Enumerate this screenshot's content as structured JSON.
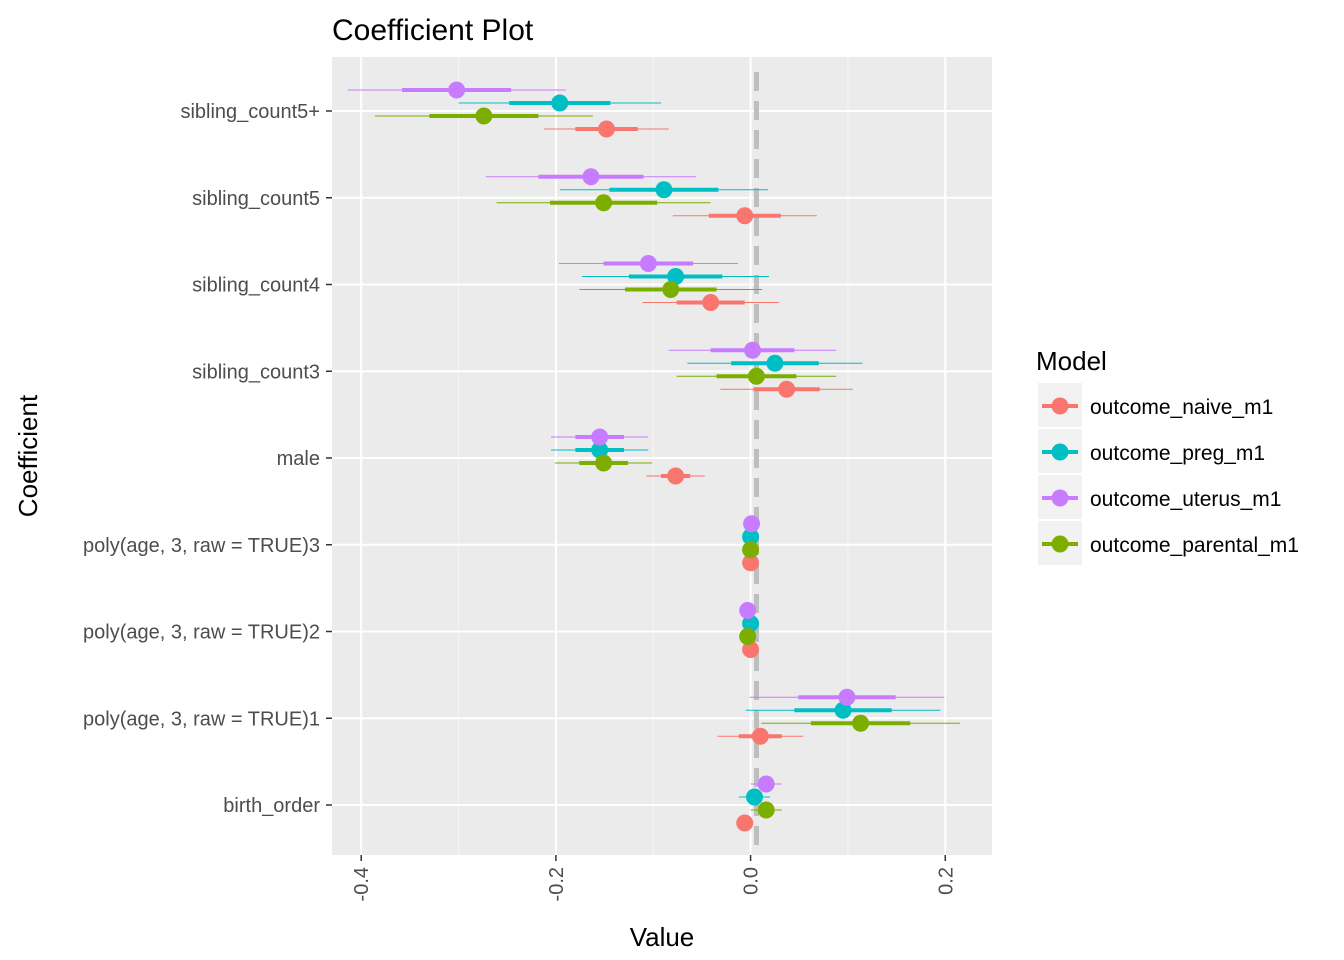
{
  "chart_data": {
    "type": "coefficient-plot",
    "title": "Coefficient Plot",
    "xlabel": "Value",
    "ylabel": "Coefficient",
    "xlim": [
      -0.43,
      0.248
    ],
    "x_ticks": [
      -0.4,
      -0.2,
      0.0,
      0.2
    ],
    "x_tick_labels": [
      "-0.4",
      "-0.2",
      "0.0",
      "0.2"
    ],
    "reference_line": 0,
    "grid": true,
    "legend_position": "right",
    "legend_title": "Model",
    "coefficients": [
      "birth_order",
      "poly(age, 3, raw = TRUE)1",
      "poly(age, 3, raw = TRUE)2",
      "poly(age, 3, raw = TRUE)3",
      "male",
      "sibling_count3",
      "sibling_count4",
      "sibling_count5",
      "sibling_count5+"
    ],
    "series": [
      {
        "name": "outcome_naive_m1",
        "color": "#F8766D",
        "estimates": [
          -0.006,
          0.01,
          0.0,
          0.0,
          -0.077,
          0.037,
          -0.041,
          -0.006,
          -0.148
        ],
        "inner_low": [
          -0.01,
          -0.012,
          0.0,
          0.0,
          -0.092,
          0.003,
          -0.076,
          -0.043,
          -0.18
        ],
        "inner_high": [
          -0.002,
          0.032,
          0.0,
          0.0,
          -0.062,
          0.071,
          -0.006,
          0.031,
          -0.116
        ],
        "outer_low": [
          -0.014,
          -0.034,
          0.0,
          0.0,
          -0.107,
          -0.031,
          -0.111,
          -0.08,
          -0.212
        ],
        "outer_high": [
          0.002,
          0.054,
          0.0,
          0.0,
          -0.047,
          0.105,
          0.029,
          0.068,
          -0.084
        ]
      },
      {
        "name": "outcome_preg_m1",
        "color": "#00BFC4",
        "estimates": [
          0.004,
          0.095,
          0.0,
          0.0,
          -0.155,
          0.025,
          -0.077,
          -0.089,
          -0.196
        ],
        "inner_low": [
          -0.004,
          0.045,
          0.0,
          0.0,
          -0.18,
          -0.02,
          -0.125,
          -0.145,
          -0.248
        ],
        "inner_high": [
          0.012,
          0.145,
          0.0,
          0.0,
          -0.13,
          0.07,
          -0.029,
          -0.033,
          -0.144
        ],
        "outer_low": [
          -0.012,
          -0.005,
          0.0,
          0.0,
          -0.205,
          -0.065,
          -0.173,
          -0.196,
          -0.3
        ],
        "outer_high": [
          0.02,
          0.195,
          0.0,
          0.0,
          -0.105,
          0.115,
          0.019,
          0.018,
          -0.092
        ]
      },
      {
        "name": "outcome_uterus_m1",
        "color": "#C77CFF",
        "estimates": [
          0.016,
          0.099,
          -0.003,
          0.001,
          -0.155,
          0.002,
          -0.105,
          -0.164,
          -0.302
        ],
        "inner_low": [
          0.008,
          0.049,
          -0.004,
          0.0,
          -0.18,
          -0.041,
          -0.151,
          -0.218,
          -0.358
        ],
        "inner_high": [
          0.024,
          0.149,
          -0.002,
          0.002,
          -0.13,
          0.045,
          -0.059,
          -0.11,
          -0.246
        ],
        "outer_low": [
          0.0,
          -0.001,
          -0.005,
          0.0,
          -0.205,
          -0.084,
          -0.197,
          -0.272,
          -0.414
        ],
        "outer_high": [
          0.032,
          0.199,
          -0.001,
          0.002,
          -0.105,
          0.088,
          -0.013,
          -0.056,
          -0.19
        ]
      },
      {
        "name": "outcome_parental_m1",
        "color": "#7CAE00",
        "estimates": [
          0.016,
          0.113,
          -0.003,
          0.0,
          -0.151,
          0.006,
          -0.082,
          -0.151,
          -0.274
        ],
        "inner_low": [
          0.008,
          0.062,
          -0.004,
          -0.001,
          -0.176,
          -0.035,
          -0.129,
          -0.206,
          -0.33
        ],
        "inner_high": [
          0.024,
          0.164,
          -0.002,
          0.001,
          -0.126,
          0.047,
          -0.035,
          -0.096,
          -0.218
        ],
        "outer_low": [
          0.0,
          0.011,
          -0.005,
          -0.002,
          -0.201,
          -0.076,
          -0.176,
          -0.261,
          -0.386
        ],
        "outer_high": [
          0.032,
          0.215,
          -0.001,
          0.002,
          -0.101,
          0.088,
          0.012,
          -0.041,
          -0.162
        ]
      }
    ]
  }
}
